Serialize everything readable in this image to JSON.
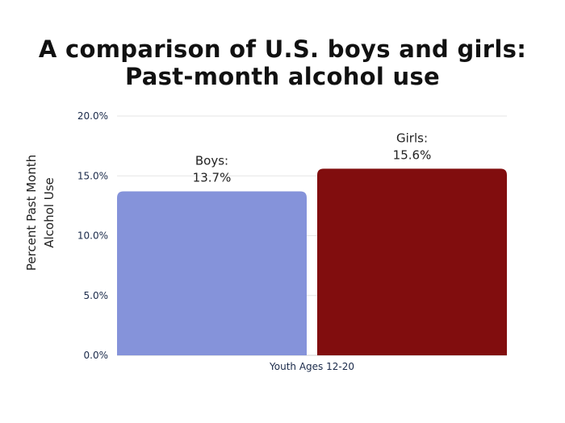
{
  "chart_data": {
    "type": "bar",
    "title_lines": [
      "A comparison of U.S. boys and girls:",
      "Past-month alcohol use"
    ],
    "ylabel_lines": [
      "Percent Past Month",
      "Alcohol Use"
    ],
    "xlabel": "",
    "x_tick_label": "Youth Ages 12-20",
    "y_ticks": [
      "0.0%",
      "5.0%",
      "10.0%",
      "15.0%",
      "20.0%"
    ],
    "y_tick_values": [
      0,
      5,
      10,
      15,
      20
    ],
    "ylim": [
      0,
      20
    ],
    "grid": true,
    "legend": "none",
    "series": [
      {
        "name": "Boys",
        "value": 13.7,
        "label_name": "Boys:",
        "label_value": "13.7%",
        "color": "#8593da"
      },
      {
        "name": "Girls",
        "value": 15.6,
        "label_name": "Girls:",
        "label_value": "15.6%",
        "color": "#810d0e"
      }
    ]
  }
}
